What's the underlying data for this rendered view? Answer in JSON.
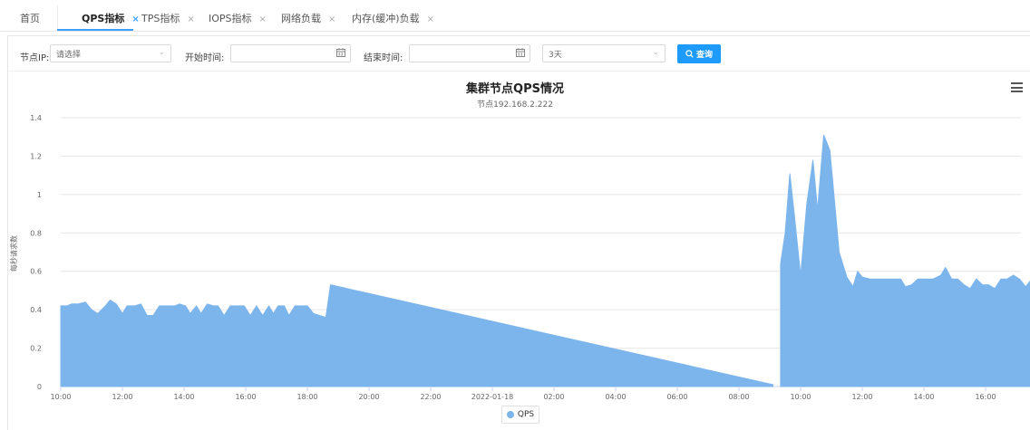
{
  "tabs": [
    {
      "label": "首页",
      "closable": false,
      "active": false
    },
    {
      "label": "QPS指标",
      "closable": true,
      "active": true
    },
    {
      "label": "TPS指标",
      "closable": true,
      "active": false
    },
    {
      "label": "IOPS指标",
      "closable": true,
      "active": false
    },
    {
      "label": "网络负载",
      "closable": true,
      "active": false
    },
    {
      "label": "内存(缓冲)负载",
      "closable": true,
      "active": false
    }
  ],
  "close_glyph": "×",
  "filters": {
    "node_ip_label": "节点IP:",
    "node_ip_value": "请选择",
    "start_time_label": "开始时间:",
    "start_time_value": "",
    "end_time_label": "结束时间:",
    "end_time_value": "",
    "range_value": "3天",
    "query_button": "查询"
  },
  "colors": {
    "accent": "#1e9bff",
    "series": "#7cb5ec"
  },
  "chart_data": {
    "type": "area",
    "title": "集群节点QPS情况",
    "subtitle": "节点192.168.2.222",
    "ylabel": "每秒请求数",
    "xlabel": "",
    "ylim": [
      0,
      1.4
    ],
    "yticks": [
      "0",
      "0.2",
      "0.4",
      "0.6",
      "0.8",
      "1",
      "1.2",
      "1.4"
    ],
    "xticks": [
      "10:00",
      "12:00",
      "14:00",
      "16:00",
      "18:00",
      "20:00",
      "22:00",
      "2022-01-18",
      "02:00",
      "04:00",
      "06:00",
      "08:00",
      "10:00",
      "12:00",
      "14:00",
      "16:00"
    ],
    "x_unit": "hours since 2022-01-17 10:00",
    "legend": "bottom-center",
    "grid": true,
    "series": [
      {
        "name": "QPS",
        "segments": [
          [
            [
              0,
              0.42
            ],
            [
              0.2,
              0.42
            ],
            [
              0.35,
              0.43
            ],
            [
              0.55,
              0.43
            ],
            [
              0.8,
              0.44
            ],
            [
              1.0,
              0.4
            ],
            [
              1.2,
              0.38
            ],
            [
              1.45,
              0.42
            ],
            [
              1.6,
              0.45
            ],
            [
              1.8,
              0.43
            ],
            [
              2.0,
              0.38
            ],
            [
              2.15,
              0.42
            ],
            [
              2.4,
              0.42
            ],
            [
              2.6,
              0.43
            ],
            [
              2.8,
              0.37
            ],
            [
              3.0,
              0.37
            ],
            [
              3.2,
              0.42
            ],
            [
              3.45,
              0.42
            ],
            [
              3.7,
              0.42
            ],
            [
              3.85,
              0.43
            ],
            [
              4.05,
              0.42
            ],
            [
              4.2,
              0.38
            ],
            [
              4.4,
              0.42
            ],
            [
              4.55,
              0.38
            ],
            [
              4.75,
              0.43
            ],
            [
              4.95,
              0.42
            ],
            [
              5.1,
              0.42
            ],
            [
              5.3,
              0.37
            ],
            [
              5.5,
              0.42
            ],
            [
              5.75,
              0.42
            ],
            [
              5.95,
              0.42
            ],
            [
              6.15,
              0.37
            ],
            [
              6.35,
              0.42
            ],
            [
              6.55,
              0.37
            ],
            [
              6.75,
              0.42
            ],
            [
              6.9,
              0.38
            ],
            [
              7.05,
              0.42
            ],
            [
              7.25,
              0.42
            ],
            [
              7.4,
              0.37
            ],
            [
              7.6,
              0.42
            ],
            [
              7.8,
              0.42
            ],
            [
              8.0,
              0.42
            ],
            [
              8.2,
              0.38
            ],
            [
              8.4,
              0.37
            ],
            [
              8.6,
              0.36
            ],
            [
              8.75,
              0.53
            ],
            [
              23.1,
              0.01
            ]
          ],
          [
            [
              23.35,
              0.64
            ],
            [
              23.5,
              0.8
            ],
            [
              23.65,
              1.11
            ],
            [
              23.8,
              0.89
            ],
            [
              24.0,
              0.58
            ],
            [
              24.2,
              0.95
            ],
            [
              24.4,
              1.18
            ],
            [
              24.55,
              0.92
            ],
            [
              24.75,
              1.31
            ],
            [
              24.95,
              1.23
            ],
            [
              25.25,
              0.7
            ],
            [
              25.5,
              0.57
            ],
            [
              25.7,
              0.52
            ],
            [
              25.85,
              0.6
            ],
            [
              26.0,
              0.57
            ],
            [
              26.25,
              0.56
            ],
            [
              26.5,
              0.56
            ],
            [
              26.75,
              0.56
            ],
            [
              27.0,
              0.56
            ],
            [
              27.25,
              0.56
            ],
            [
              27.4,
              0.52
            ],
            [
              27.6,
              0.53
            ],
            [
              27.8,
              0.56
            ],
            [
              28.05,
              0.56
            ],
            [
              28.3,
              0.56
            ],
            [
              28.55,
              0.58
            ],
            [
              28.7,
              0.62
            ],
            [
              28.9,
              0.56
            ],
            [
              29.1,
              0.56
            ],
            [
              29.3,
              0.53
            ],
            [
              29.5,
              0.51
            ],
            [
              29.7,
              0.56
            ],
            [
              29.9,
              0.53
            ],
            [
              30.1,
              0.53
            ],
            [
              30.3,
              0.51
            ],
            [
              30.5,
              0.56
            ],
            [
              30.7,
              0.56
            ],
            [
              30.9,
              0.58
            ],
            [
              31.1,
              0.56
            ],
            [
              31.3,
              0.52
            ],
            [
              31.5,
              0.56
            ],
            [
              31.7,
              0.56
            ],
            [
              31.9,
              0.56
            ],
            [
              32.1,
              0.56
            ],
            [
              32.3,
              0.56
            ],
            [
              32.5,
              0.58
            ],
            [
              32.65,
              0.7
            ]
          ]
        ]
      }
    ]
  }
}
